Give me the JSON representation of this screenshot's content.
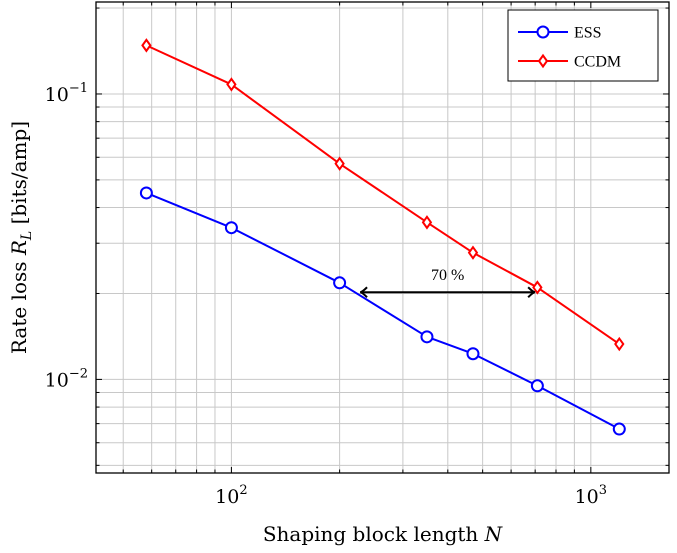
{
  "chart_data": {
    "type": "line",
    "title": "",
    "xlabel": {
      "text": "Shaping block length ",
      "var": "N"
    },
    "ylabel": {
      "text": "Rate loss ",
      "var": "R",
      "sub": "L",
      "unit": " [bits/amp]"
    },
    "xscale": "log",
    "yscale": "log",
    "xlim": [
      42,
      1650
    ],
    "ylim": [
      0.0047,
      0.21
    ],
    "xticks": [
      {
        "value": 100,
        "base": "10",
        "exp": "2"
      },
      {
        "value": 1000,
        "base": "10",
        "exp": "3"
      }
    ],
    "yticks": [
      {
        "value": 0.1,
        "base": "10",
        "exp": "−1"
      },
      {
        "value": 0.01,
        "base": "10",
        "exp": "−2"
      }
    ],
    "grid": true,
    "legend_position": "top-right",
    "series": [
      {
        "name": "ESS",
        "color": "#0000ff",
        "marker": "circle",
        "x": [
          58,
          100,
          200,
          350,
          470,
          710,
          1200
        ],
        "y": [
          0.045,
          0.034,
          0.0218,
          0.0141,
          0.0123,
          0.0095,
          0.0067
        ]
      },
      {
        "name": "CCDM",
        "color": "#ff0000",
        "marker": "diamond",
        "x": [
          58,
          100,
          200,
          350,
          470,
          710,
          1200
        ],
        "y": [
          0.148,
          0.108,
          0.057,
          0.0355,
          0.0278,
          0.021,
          0.0133
        ]
      }
    ],
    "annotations": [
      {
        "text": "70 %",
        "from_x": 228,
        "to_x": 700,
        "y": 0.0202
      }
    ]
  }
}
